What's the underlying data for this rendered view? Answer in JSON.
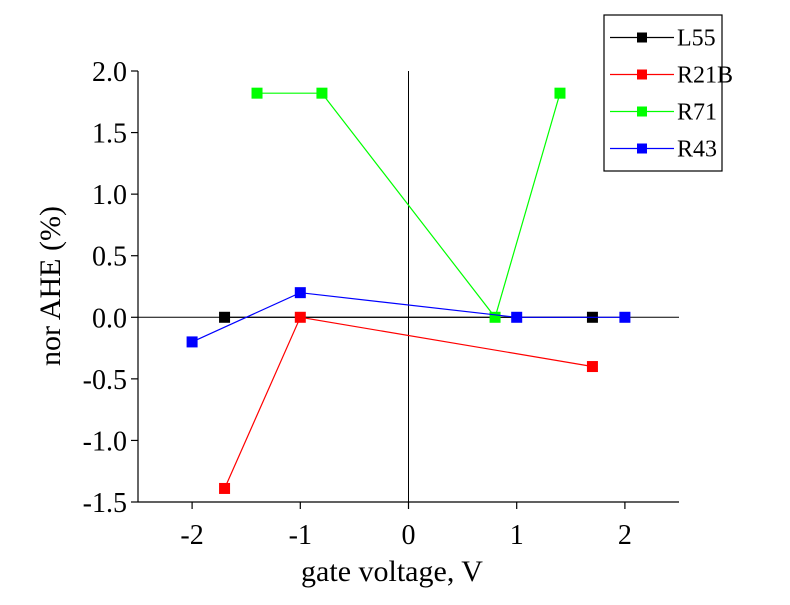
{
  "chart_data": {
    "type": "line",
    "xlabel": "gate voltage, V",
    "ylabel": "nor AHE  (%)",
    "xlim": [
      -2.5,
      2.5
    ],
    "ylim": [
      -1.5,
      2.0
    ],
    "x_ticks": [
      -2,
      -1,
      0,
      1,
      2
    ],
    "x_tick_labels": [
      "-2",
      "-1",
      "0",
      "1",
      "2"
    ],
    "y_ticks": [
      -1.5,
      -1.0,
      -0.5,
      0.0,
      0.5,
      1.0,
      1.5,
      2.0
    ],
    "y_tick_labels": [
      "-1.5",
      "-1.0",
      "-0.5",
      "0.0",
      "0.5",
      "1.0",
      "1.5",
      "2.0"
    ],
    "grid": false,
    "zero_lines": true,
    "legend_position": "top-right",
    "series": [
      {
        "name": "L55",
        "color": "#000000",
        "marker": "square",
        "points": [
          [
            -1.7,
            0.0
          ],
          [
            1.7,
            0.0
          ]
        ]
      },
      {
        "name": "R21B",
        "color": "#ff0000",
        "marker": "square",
        "points": [
          [
            -1.7,
            -1.39
          ],
          [
            -1.0,
            0.0
          ],
          [
            1.7,
            -0.4
          ]
        ]
      },
      {
        "name": "R71",
        "color": "#00ff00",
        "marker": "square",
        "points": [
          [
            -1.4,
            1.82
          ],
          [
            -0.8,
            1.82
          ],
          [
            0.8,
            0.0
          ],
          [
            1.4,
            1.82
          ]
        ]
      },
      {
        "name": "R43",
        "color": "#0000ff",
        "marker": "square",
        "points": [
          [
            -2.0,
            -0.2
          ],
          [
            -1.0,
            0.2
          ],
          [
            1.0,
            0.0
          ],
          [
            2.0,
            0.0
          ]
        ]
      }
    ]
  }
}
